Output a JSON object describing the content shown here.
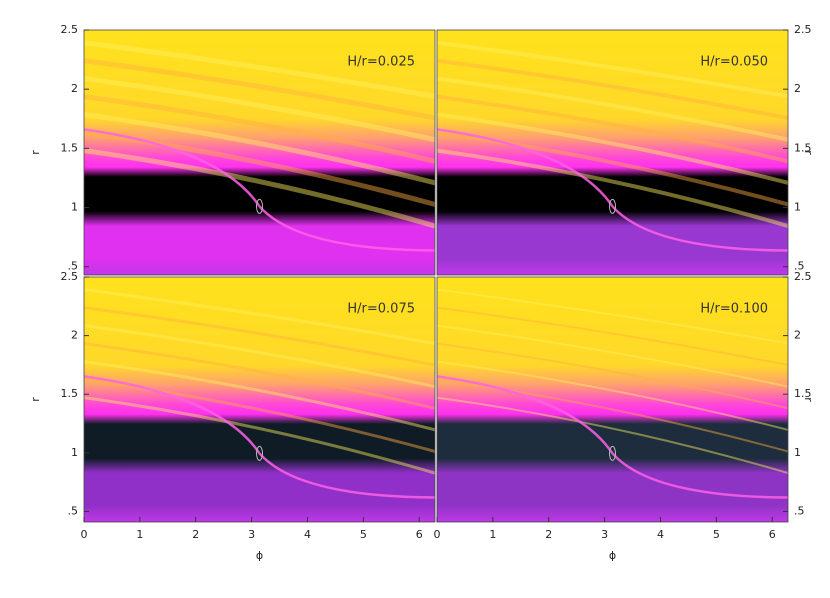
{
  "chart_data": [
    {
      "type": "heatmap",
      "annotation": "H/r=0.025",
      "ylabel": "r",
      "xlim": [
        0,
        6.283
      ],
      "ylim": [
        0.43,
        2.5
      ],
      "yticks": [
        {
          "value": 0.5,
          "label": ".5"
        },
        1,
        1.5,
        2,
        2.5
      ]
    },
    {
      "type": "heatmap",
      "annotation": "H/r=0.050",
      "ylabel": "r",
      "xlim": [
        0,
        6.283
      ],
      "ylim": [
        0.43,
        2.5
      ],
      "yticks": [
        {
          "value": 0.5,
          "label": ".5"
        },
        1,
        1.5,
        2,
        2.5
      ]
    },
    {
      "type": "heatmap",
      "annotation": "H/r=0.075",
      "ylabel": "r",
      "xlabel": "ϕ",
      "xlim": [
        0,
        6.283
      ],
      "ylim": [
        0.41,
        2.5
      ],
      "yticks": [
        {
          "value": 0.5,
          "label": ".5"
        },
        1,
        1.5,
        2,
        2.5
      ],
      "xticks": [
        0,
        1,
        2,
        3,
        4,
        5,
        6
      ]
    },
    {
      "type": "heatmap",
      "annotation": "H/r=0.100",
      "ylabel": "r",
      "xlabel": "ϕ",
      "xlim": [
        0,
        6.283
      ],
      "ylim": [
        0.41,
        2.5
      ],
      "yticks": [
        {
          "value": 0.5,
          "label": ".5"
        },
        1,
        1.5,
        2,
        2.5
      ],
      "xticks": [
        0,
        1,
        2,
        3,
        4,
        5,
        6
      ]
    }
  ]
}
